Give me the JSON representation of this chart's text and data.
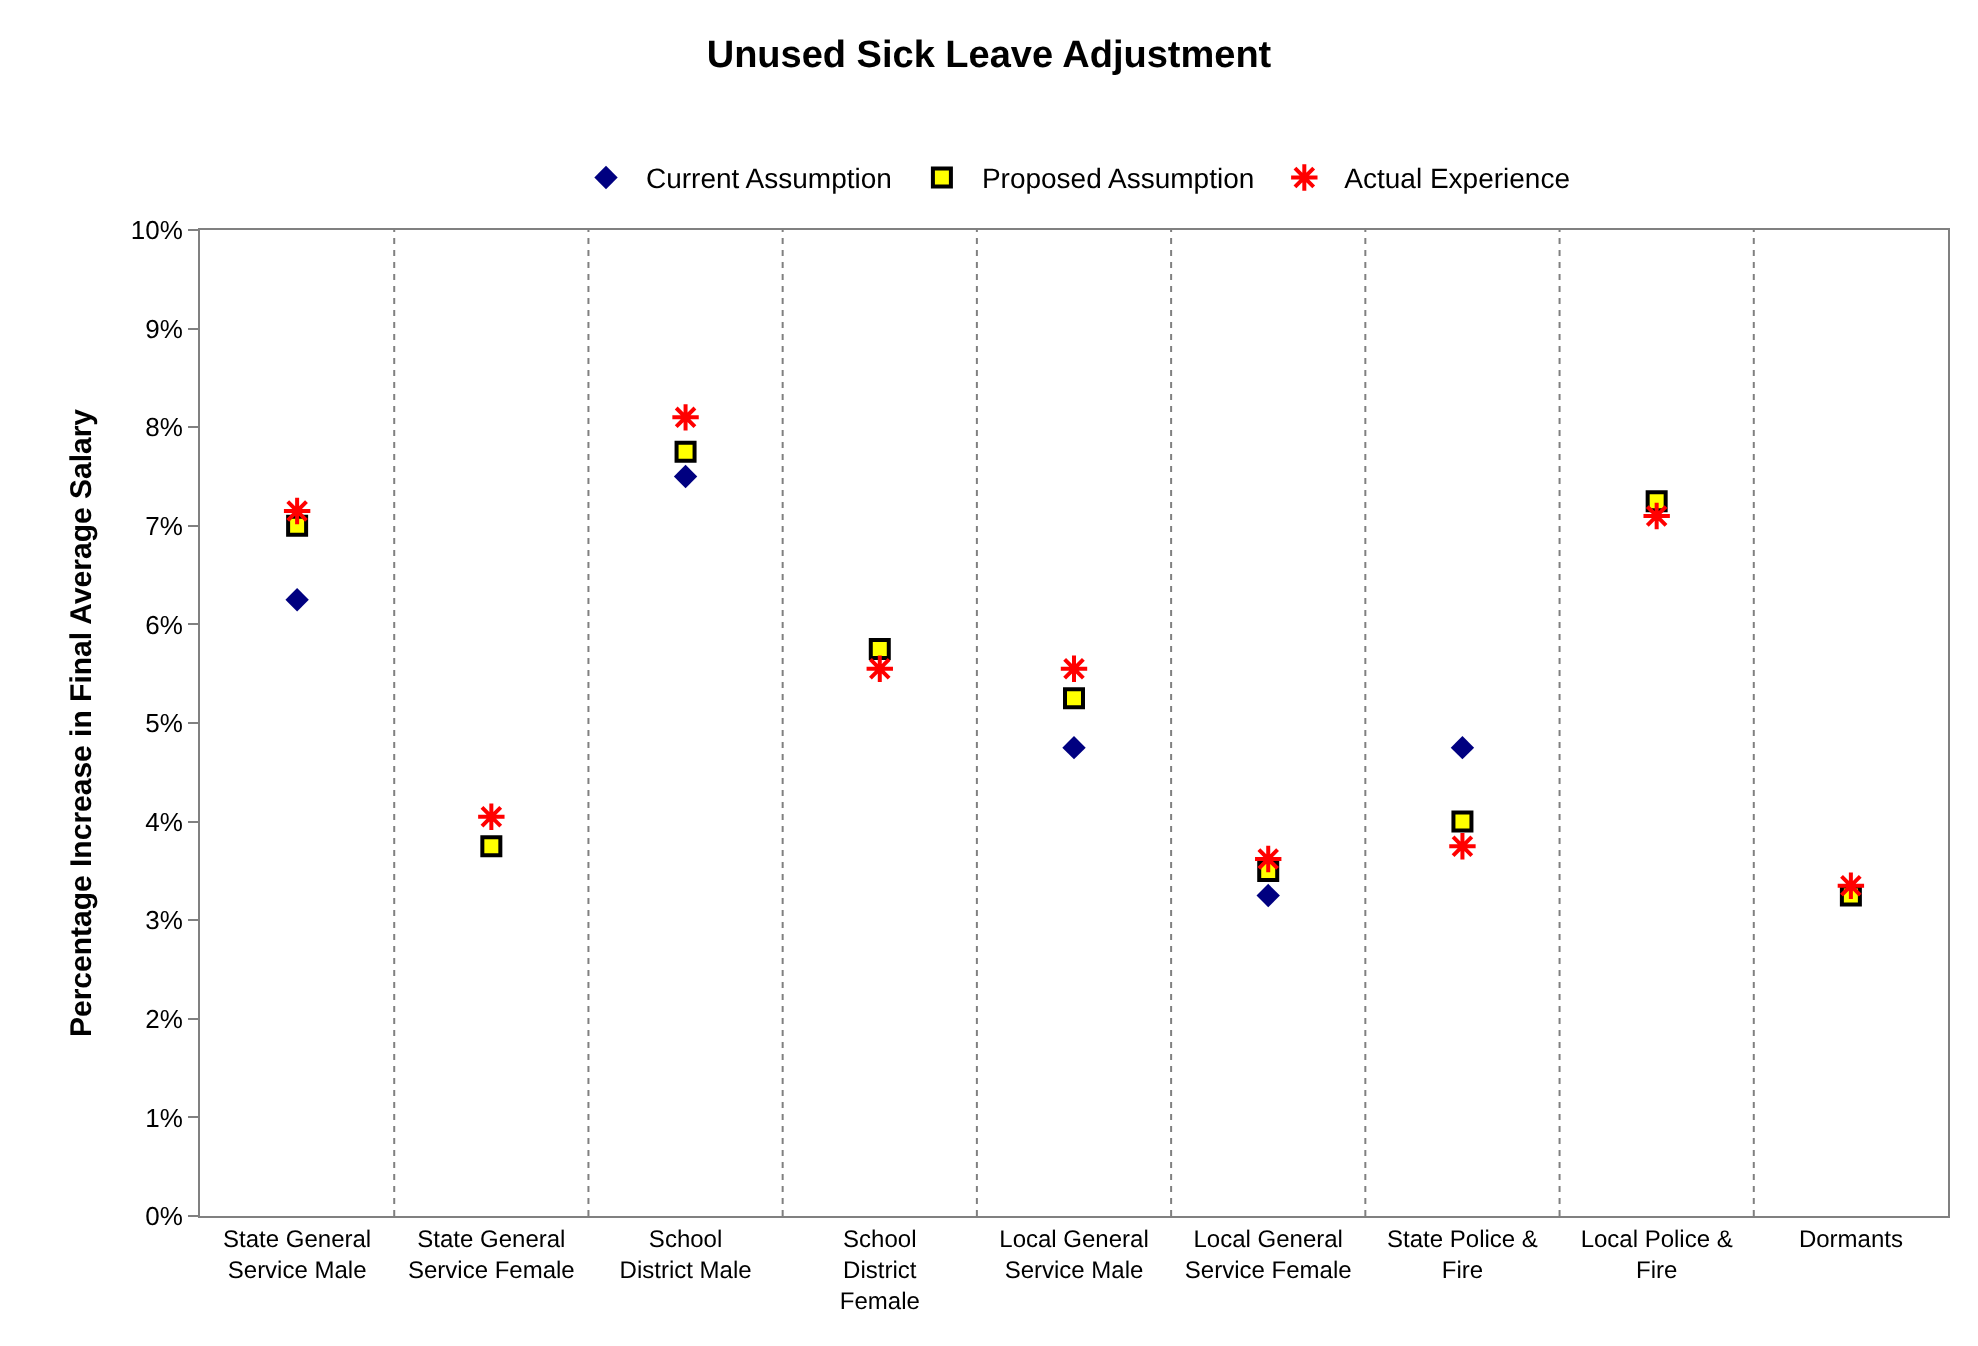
{
  "chart_data": {
    "type": "scatter",
    "title": "Unused Sick Leave Adjustment",
    "ylabel": "Percentage Increase in Final Average Salary",
    "categories": [
      "State General Service Male",
      "State General Service Female",
      "School District Male",
      "School District Female",
      "Local General Service Male",
      "Local General Service Female",
      "State Police & Fire",
      "Local Police & Fire",
      "Dormants"
    ],
    "series": [
      {
        "name": "Current Assumption",
        "color": "#000080",
        "marker": "diamond",
        "values": [
          6.25,
          null,
          7.5,
          null,
          4.75,
          3.25,
          4.75,
          null,
          null
        ]
      },
      {
        "name": "Proposed Assumption",
        "color": "#ffff00",
        "marker": "square",
        "values": [
          7.0,
          3.75,
          7.75,
          5.75,
          5.25,
          3.5,
          4.0,
          7.25,
          3.25
        ]
      },
      {
        "name": "Actual Experience",
        "color": "#ff0000",
        "marker": "cross",
        "values": [
          7.15,
          4.05,
          8.1,
          5.55,
          5.55,
          3.62,
          3.75,
          7.1,
          3.35
        ]
      }
    ],
    "ylim": [
      0,
      10
    ],
    "yticks": [
      {
        "value": 0,
        "label": "0%"
      },
      {
        "value": 1,
        "label": "1%"
      },
      {
        "value": 2,
        "label": "2%"
      },
      {
        "value": 3,
        "label": "3%"
      },
      {
        "value": 4,
        "label": "4%"
      },
      {
        "value": 5,
        "label": "5%"
      },
      {
        "value": 6,
        "label": "6%"
      },
      {
        "value": 7,
        "label": "7%"
      },
      {
        "value": 8,
        "label": "8%"
      },
      {
        "value": 9,
        "label": "9%"
      },
      {
        "value": 10,
        "label": "10%"
      }
    ],
    "grid": "x",
    "legend": "top"
  }
}
